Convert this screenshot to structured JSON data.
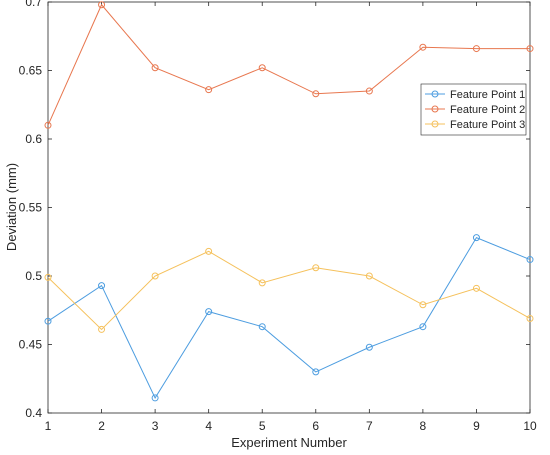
{
  "chart_data": {
    "type": "line",
    "title": "",
    "xlabel": "Experiment Number",
    "ylabel": "Deviation (mm)",
    "xlim": [
      1,
      10
    ],
    "ylim": [
      0.4,
      0.7
    ],
    "x": [
      1,
      2,
      3,
      4,
      5,
      6,
      7,
      8,
      9,
      10
    ],
    "xticks": [
      "1",
      "2",
      "3",
      "4",
      "5",
      "6",
      "7",
      "8",
      "9",
      "10"
    ],
    "yticks": [
      "0.4",
      "0.45",
      "0.5",
      "0.55",
      "0.6",
      "0.65",
      "0.7"
    ],
    "grid": false,
    "legend_position": "top-right",
    "marker": "circle",
    "series": [
      {
        "name": "Feature Point 1",
        "color": "#4d9de0",
        "values": [
          0.467,
          0.493,
          0.411,
          0.474,
          0.463,
          0.43,
          0.448,
          0.463,
          0.528,
          0.512
        ]
      },
      {
        "name": "Feature Point 2",
        "color": "#e8774f",
        "values": [
          0.61,
          0.698,
          0.652,
          0.636,
          0.652,
          0.633,
          0.635,
          0.667,
          0.666,
          0.666
        ]
      },
      {
        "name": "Feature Point 3",
        "color": "#f5c15c",
        "values": [
          0.499,
          0.461,
          0.5,
          0.518,
          0.495,
          0.506,
          0.5,
          0.479,
          0.491,
          0.469
        ]
      }
    ]
  }
}
